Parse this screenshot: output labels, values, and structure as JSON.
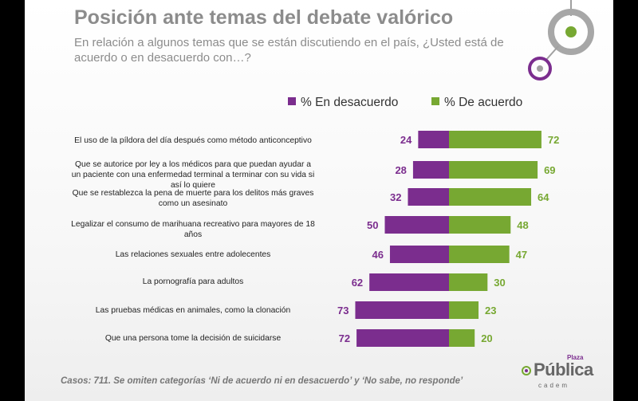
{
  "header": {
    "title": "Posición ante temas del debate valórico",
    "subtitle": "En relación a algunos temas que se están discutiendo en el país, ¿Usted está de acuerdo o en desacuerdo con…?"
  },
  "legend": {
    "disagree": "% En desacuerdo",
    "agree": "% De acuerdo"
  },
  "colors": {
    "disagree": "#7b2d8e",
    "agree": "#77a832",
    "text": "#8c8c8c"
  },
  "chart_data": {
    "type": "bar",
    "orientation": "horizontal-diverging",
    "categories": [
      "El uso de la píldora del día después como método anticonceptivo",
      "Que se autorice por ley a los médicos para que puedan ayudar a un paciente con una enfermedad terminal a terminar con su vida si así lo quiere",
      "Que se restablezca la pena de muerte para los delitos más graves como un asesinato",
      "Legalizar el consumo de marihuana recreativo para mayores de 18 años",
      "Las relaciones sexuales entre adolecentes",
      "La pornografía para adultos",
      "Las pruebas médicas en animales, como la clonación",
      "Que una persona tome la decisión de suicidarse"
    ],
    "series": [
      {
        "name": "% En desacuerdo",
        "values": [
          24,
          28,
          32,
          50,
          46,
          62,
          73,
          72
        ]
      },
      {
        "name": "% De acuerdo",
        "values": [
          72,
          69,
          64,
          48,
          47,
          30,
          23,
          20
        ]
      }
    ],
    "legend_position": "top",
    "grid": false
  },
  "footnote": "Casos: 711. Se omiten categorías ‘Ni de acuerdo ni en desacuerdo’ y ‘No sabe, no responde’",
  "logo": {
    "name": "Plaza Pública",
    "main": "Pública",
    "top": "Plaza",
    "bottom": "cadem"
  }
}
